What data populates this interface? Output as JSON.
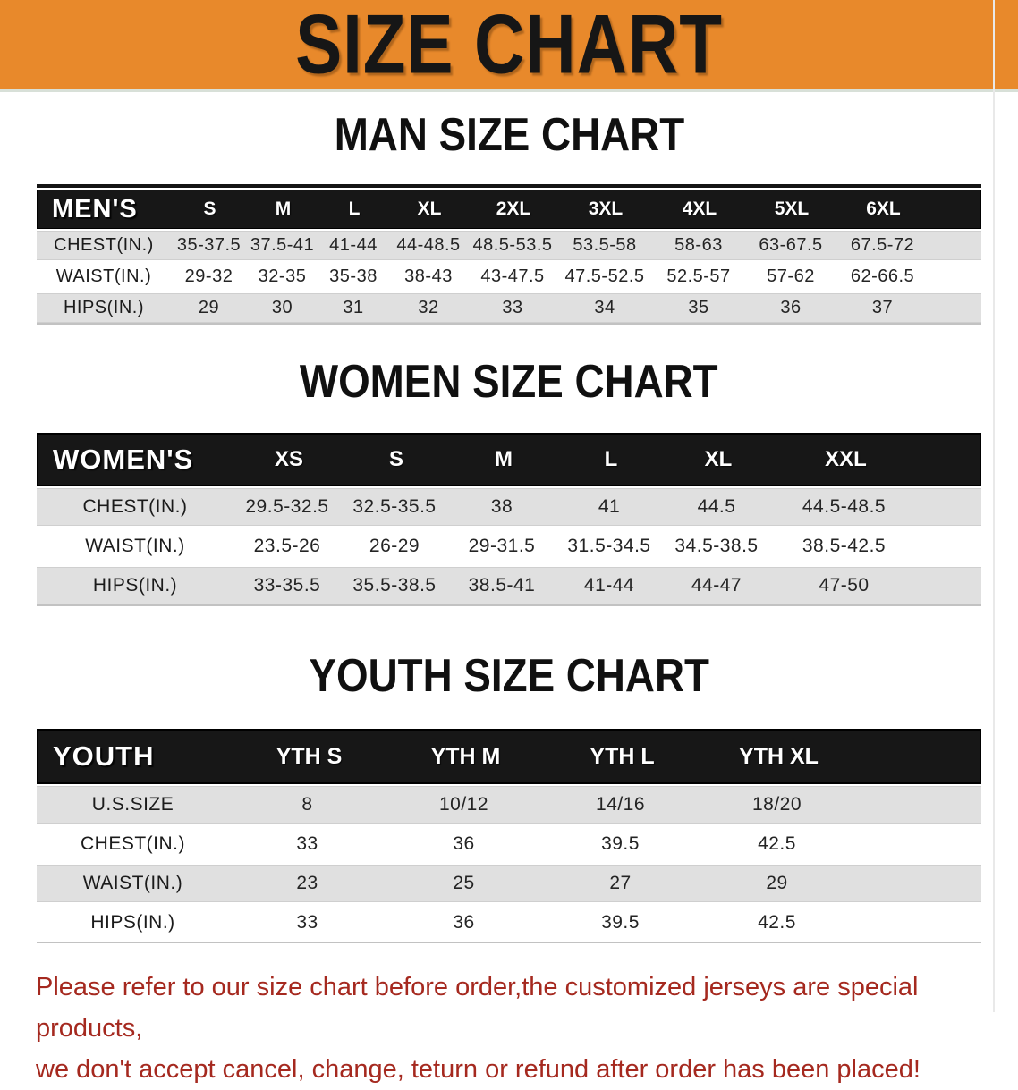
{
  "banner": {
    "title": "SIZE CHART",
    "bg_color": "#E8892B",
    "text_color": "#161616"
  },
  "sections": [
    {
      "title": "MAN SIZE CHART",
      "header_label": "MEN'S",
      "columns": [
        "S",
        "M",
        "L",
        "XL",
        "2XL",
        "3XL",
        "4XL",
        "5XL",
        "6XL"
      ],
      "rows": [
        {
          "label": "CHEST(IN.)",
          "values": [
            "35-37.5",
            "37.5-41",
            "41-44",
            "44-48.5",
            "48.5-53.5",
            "53.5-58",
            "58-63",
            "63-67.5",
            "67.5-72"
          ]
        },
        {
          "label": "WAIST(IN.)",
          "values": [
            "29-32",
            "32-35",
            "35-38",
            "38-43",
            "43-47.5",
            "47.5-52.5",
            "52.5-57",
            "57-62",
            "62-66.5"
          ]
        },
        {
          "label": "HIPS(IN.)",
          "values": [
            "29",
            "30",
            "31",
            "32",
            "33",
            "34",
            "35",
            "36",
            "37"
          ]
        }
      ]
    },
    {
      "title": "WOMEN SIZE CHART",
      "header_label": "WOMEN'S",
      "columns": [
        "XS",
        "S",
        "M",
        "L",
        "XL",
        "XXL"
      ],
      "rows": [
        {
          "label": "CHEST(IN.)",
          "values": [
            "29.5-32.5",
            "32.5-35.5",
            "38",
            "41",
            "44.5",
            "44.5-48.5"
          ]
        },
        {
          "label": "WAIST(IN.)",
          "values": [
            "23.5-26",
            "26-29",
            "29-31.5",
            "31.5-34.5",
            "34.5-38.5",
            "38.5-42.5"
          ]
        },
        {
          "label": "HIPS(IN.)",
          "values": [
            "33-35.5",
            "35.5-38.5",
            "38.5-41",
            "41-44",
            "44-47",
            "47-50"
          ]
        }
      ]
    },
    {
      "title": "YOUTH SIZE CHART",
      "header_label": "YOUTH",
      "columns": [
        "YTH S",
        "YTH M",
        "YTH L",
        "YTH XL"
      ],
      "rows": [
        {
          "label": "U.S.SIZE",
          "values": [
            "8",
            "10/12",
            "14/16",
            "18/20"
          ]
        },
        {
          "label": "CHEST(IN.)",
          "values": [
            "33",
            "36",
            "39.5",
            "42.5"
          ]
        },
        {
          "label": "WAIST(IN.)",
          "values": [
            "23",
            "25",
            "27",
            "29"
          ]
        },
        {
          "label": "HIPS(IN.)",
          "values": [
            "33",
            "36",
            "39.5",
            "42.5"
          ]
        }
      ]
    }
  ],
  "footer": {
    "line1": "Please refer to our size chart before order,the customized jerseys are special products,",
    "line2": "we don't accept cancel, change, teturn or refund after order has been placed!",
    "text_color": "#A5291F"
  }
}
